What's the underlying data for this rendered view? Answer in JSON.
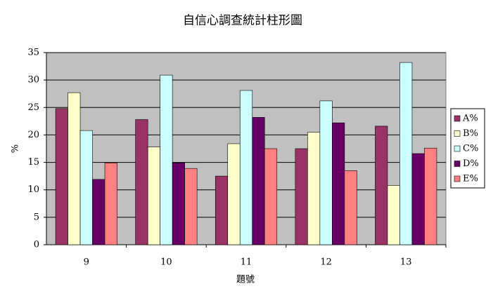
{
  "chart_data": {
    "type": "bar",
    "title": "自信心調查統計柱形圖",
    "x_label": "題號",
    "y_label": "%",
    "categories": [
      "9",
      "10",
      "11",
      "12",
      "13"
    ],
    "series": [
      {
        "name": "A%",
        "color": "#993366",
        "values": [
          24.8,
          22.8,
          12.5,
          17.5,
          21.6
        ]
      },
      {
        "name": "B%",
        "color": "#ffffcc",
        "values": [
          27.7,
          17.8,
          18.4,
          20.5,
          10.8
        ]
      },
      {
        "name": "C%",
        "color": "#ccffff",
        "values": [
          20.8,
          30.9,
          28.1,
          26.2,
          33.2
        ]
      },
      {
        "name": "D%",
        "color": "#660066",
        "values": [
          11.9,
          14.9,
          23.2,
          22.2,
          16.6
        ]
      },
      {
        "name": "E%",
        "color": "#ff8080",
        "values": [
          14.9,
          13.9,
          17.5,
          13.5,
          17.6
        ]
      }
    ],
    "ylim": [
      0,
      35
    ],
    "yticks": [
      0,
      5,
      10,
      15,
      20,
      25,
      30,
      35
    ],
    "grid": true,
    "legend": "right"
  }
}
